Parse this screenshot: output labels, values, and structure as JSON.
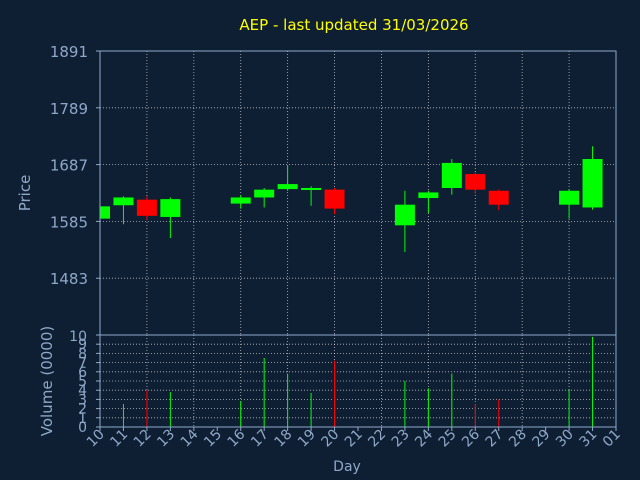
{
  "chart_data": [
    {
      "type": "candlestick",
      "title": "AEP - last updated 31/03/2026",
      "ylabel": "Price",
      "xlabel": "Day",
      "ylim": [
        1381,
        1891
      ],
      "yticks": [
        1483,
        1585,
        1687,
        1789,
        1891
      ],
      "x_ticks": [
        "10",
        "11",
        "12",
        "13",
        "14",
        "15",
        "16",
        "17",
        "18",
        "19",
        "20",
        "21",
        "22",
        "23",
        "24",
        "25",
        "26",
        "27",
        "28",
        "29",
        "30",
        "31",
        "01"
      ],
      "grid": true,
      "colors": {
        "up": "#00ff00",
        "down": "#ff0000",
        "grid": "#ffffff",
        "axis": "#8fa8c8",
        "title": "#ffff00"
      },
      "candles": [
        {
          "x": "10",
          "open": 1590,
          "close": 1612,
          "high": 1615,
          "low": 1585
        },
        {
          "x": "11",
          "open": 1614,
          "close": 1628,
          "high": 1630,
          "low": 1580
        },
        {
          "x": "12",
          "open": 1624,
          "close": 1595,
          "high": 1630,
          "low": 1588
        },
        {
          "x": "13",
          "open": 1593,
          "close": 1625,
          "high": 1628,
          "low": 1555
        },
        {
          "x": "16",
          "open": 1617,
          "close": 1628,
          "high": 1632,
          "low": 1608
        },
        {
          "x": "17",
          "open": 1628,
          "close": 1642,
          "high": 1645,
          "low": 1610
        },
        {
          "x": "18",
          "open": 1643,
          "close": 1652,
          "high": 1685,
          "low": 1640
        },
        {
          "x": "19",
          "open": 1642,
          "close": 1645,
          "high": 1648,
          "low": 1613
        },
        {
          "x": "20",
          "open": 1642,
          "close": 1608,
          "high": 1645,
          "low": 1598
        },
        {
          "x": "23",
          "open": 1578,
          "close": 1615,
          "high": 1640,
          "low": 1530
        },
        {
          "x": "24",
          "open": 1627,
          "close": 1637,
          "high": 1640,
          "low": 1600
        },
        {
          "x": "25",
          "open": 1645,
          "close": 1690,
          "high": 1697,
          "low": 1633
        },
        {
          "x": "26",
          "open": 1670,
          "close": 1642,
          "high": 1673,
          "low": 1635
        },
        {
          "x": "27",
          "open": 1640,
          "close": 1615,
          "high": 1642,
          "low": 1605
        },
        {
          "x": "30",
          "open": 1615,
          "close": 1640,
          "high": 1643,
          "low": 1590
        },
        {
          "x": "31",
          "open": 1610,
          "close": 1697,
          "high": 1720,
          "low": 1606
        }
      ]
    },
    {
      "type": "bar",
      "ylabel": "Volume (0000)",
      "ylim": [
        0,
        10
      ],
      "yticks": [
        0,
        1,
        2,
        3,
        4,
        5,
        6,
        7,
        8,
        9,
        10
      ],
      "bars": [
        {
          "x": "11",
          "value": 2.5,
          "direction": "up"
        },
        {
          "x": "12",
          "value": 4.0,
          "direction": "down"
        },
        {
          "x": "13",
          "value": 3.8,
          "direction": "up"
        },
        {
          "x": "16",
          "value": 2.8,
          "direction": "up"
        },
        {
          "x": "17",
          "value": 7.5,
          "direction": "up"
        },
        {
          "x": "18",
          "value": 5.8,
          "direction": "up"
        },
        {
          "x": "19",
          "value": 3.7,
          "direction": "up"
        },
        {
          "x": "20",
          "value": 7.2,
          "direction": "down"
        },
        {
          "x": "23",
          "value": 5.0,
          "direction": "up"
        },
        {
          "x": "24",
          "value": 4.2,
          "direction": "up"
        },
        {
          "x": "25",
          "value": 5.8,
          "direction": "up"
        },
        {
          "x": "26",
          "value": 2.5,
          "direction": "down"
        },
        {
          "x": "27",
          "value": 3.0,
          "direction": "down"
        },
        {
          "x": "30",
          "value": 4.1,
          "direction": "up"
        },
        {
          "x": "31",
          "value": 9.8,
          "direction": "up"
        }
      ]
    }
  ]
}
